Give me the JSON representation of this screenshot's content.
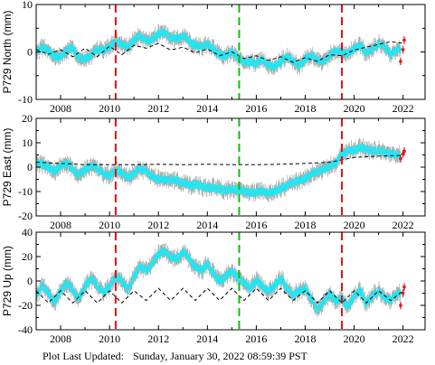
{
  "footer": {
    "label": "Plot Last Updated:",
    "timestamp": "Sunday, January 30, 2022 08:59:39 PST"
  },
  "colors": {
    "observed": "#22e6f2",
    "error_bars": "#aaaaaa",
    "model": "#000000",
    "recent": "#ee1111",
    "event_red": "#dd1111",
    "event_green": "#11bb11"
  },
  "chart_data": [
    {
      "type": "scatter",
      "ylabel": "P729 North (mm)",
      "xlim": [
        2007.0,
        2022.9
      ],
      "ylim": [
        -10,
        10
      ],
      "yticks": [
        -10,
        0,
        10
      ],
      "xticks": [
        2008,
        2010,
        2012,
        2014,
        2016,
        2018,
        2020,
        2022
      ],
      "grid": false,
      "event_lines": [
        {
          "x": 2010.25,
          "color": "red",
          "style": "dashed"
        },
        {
          "x": 2015.3,
          "color": "green",
          "style": "dashed"
        },
        {
          "x": 2019.5,
          "color": "red",
          "style": "dashed"
        }
      ],
      "series": [
        {
          "role": "observed",
          "x": [
            2007.0,
            2007.25,
            2007.5,
            2007.75,
            2008.0,
            2008.25,
            2008.5,
            2008.75,
            2009.0,
            2009.25,
            2009.5,
            2009.75,
            2010.0,
            2010.25,
            2010.5,
            2010.75,
            2011.0,
            2011.25,
            2011.5,
            2011.75,
            2012.0,
            2012.25,
            2012.5,
            2012.75,
            2013.0,
            2013.25,
            2013.5,
            2013.75,
            2014.0,
            2014.25,
            2014.5,
            2014.75,
            2015.0,
            2015.25,
            2015.5,
            2015.75,
            2016.0,
            2016.25,
            2016.5,
            2016.75,
            2017.0,
            2017.25,
            2017.5,
            2017.75,
            2018.0,
            2018.25,
            2018.5,
            2018.75,
            2019.0,
            2019.25,
            2019.5,
            2019.75,
            2020.0,
            2020.25,
            2020.5,
            2020.75,
            2021.0,
            2021.25,
            2021.5,
            2021.75
          ],
          "y": [
            0.0,
            1.0,
            0.2,
            -1.0,
            -1.0,
            0.3,
            0.8,
            -1.2,
            -1.5,
            -0.8,
            0.6,
            0.2,
            1.2,
            2.2,
            1.6,
            0.8,
            2.6,
            3.4,
            2.2,
            2.6,
            3.8,
            4.0,
            3.0,
            2.8,
            3.4,
            2.2,
            1.4,
            1.0,
            1.6,
            0.6,
            -0.6,
            -0.8,
            0.0,
            -1.2,
            -2.4,
            -2.0,
            -2.6,
            -1.4,
            -2.8,
            -3.2,
            -2.0,
            -1.0,
            -2.0,
            -3.0,
            -1.4,
            -0.6,
            -1.8,
            -2.2,
            -0.6,
            0.4,
            0.0,
            -0.6,
            0.8,
            1.4,
            -0.2,
            0.6,
            1.8,
            1.0,
            -0.6,
            0.6
          ]
        },
        {
          "role": "recent",
          "x": [
            2021.9,
            2022.0,
            2022.05
          ],
          "y": [
            -2.0,
            0.5,
            2.5
          ]
        },
        {
          "role": "model",
          "x": [
            2007.0,
            2007.5,
            2008.0,
            2008.5,
            2009.0,
            2009.5,
            2010.0,
            2010.5,
            2011.0,
            2011.5,
            2012.0,
            2012.5,
            2013.0,
            2013.5,
            2014.0,
            2014.5,
            2015.0,
            2015.5,
            2016.0,
            2016.5,
            2017.0,
            2017.5,
            2018.0,
            2018.5,
            2019.0,
            2019.5,
            2020.0,
            2020.5,
            2021.0,
            2021.5,
            2022.0
          ],
          "y": [
            0.5,
            -0.5,
            0.5,
            -1.0,
            0.8,
            -1.0,
            1.2,
            -0.6,
            1.4,
            0.8,
            1.8,
            0.4,
            1.0,
            -0.2,
            0.6,
            -0.8,
            0.0,
            -1.4,
            -0.8,
            -1.8,
            -1.0,
            -2.2,
            -1.2,
            -2.0,
            -0.6,
            -0.8,
            0.4,
            1.0,
            1.6,
            2.2,
            1.8
          ]
        }
      ]
    },
    {
      "type": "scatter",
      "ylabel": "P729 East (mm)",
      "xlim": [
        2007.0,
        2022.9
      ],
      "ylim": [
        -20,
        20
      ],
      "yticks": [
        -20,
        -10,
        0,
        10,
        20
      ],
      "xticks": [
        2008,
        2010,
        2012,
        2014,
        2016,
        2018,
        2020,
        2022
      ],
      "grid": false,
      "event_lines": [
        {
          "x": 2010.25,
          "color": "red",
          "style": "dashed"
        },
        {
          "x": 2015.3,
          "color": "green",
          "style": "dashed"
        },
        {
          "x": 2019.5,
          "color": "red",
          "style": "dashed"
        }
      ],
      "series": [
        {
          "role": "observed",
          "x": [
            2007.0,
            2007.25,
            2007.5,
            2007.75,
            2008.0,
            2008.25,
            2008.5,
            2008.75,
            2009.0,
            2009.25,
            2009.5,
            2009.75,
            2010.0,
            2010.25,
            2010.5,
            2010.75,
            2011.0,
            2011.25,
            2011.5,
            2011.75,
            2012.0,
            2012.25,
            2012.5,
            2012.75,
            2013.0,
            2013.25,
            2013.5,
            2013.75,
            2014.0,
            2014.25,
            2014.5,
            2014.75,
            2015.0,
            2015.25,
            2015.5,
            2015.75,
            2016.0,
            2016.25,
            2016.5,
            2016.75,
            2017.0,
            2017.25,
            2017.5,
            2017.75,
            2018.0,
            2018.25,
            2018.5,
            2018.75,
            2019.0,
            2019.25,
            2019.5,
            2019.75,
            2020.0,
            2020.25,
            2020.5,
            2020.75,
            2021.0,
            2021.25,
            2021.5,
            2021.75
          ],
          "y": [
            2.0,
            1.0,
            0.0,
            -2.0,
            0.5,
            1.5,
            -1.0,
            -3.0,
            -1.0,
            0.5,
            -0.5,
            -3.0,
            -3.5,
            -1.0,
            -2.5,
            -4.5,
            -2.5,
            -0.5,
            -2.0,
            -4.0,
            -5.0,
            -5.5,
            -5.0,
            -5.5,
            -6.5,
            -7.5,
            -7.0,
            -8.0,
            -8.5,
            -8.5,
            -9.0,
            -9.5,
            -9.0,
            -9.5,
            -10.0,
            -10.5,
            -10.5,
            -9.5,
            -10.5,
            -10.0,
            -9.0,
            -7.5,
            -6.5,
            -5.5,
            -4.5,
            -2.5,
            -2.0,
            -1.0,
            0.5,
            2.0,
            5.5,
            6.5,
            7.0,
            8.0,
            7.5,
            6.5,
            7.0,
            6.0,
            5.5,
            5.0
          ]
        },
        {
          "role": "recent",
          "x": [
            2021.9,
            2022.0,
            2022.05
          ],
          "y": [
            3.5,
            5.5,
            6.5
          ]
        },
        {
          "role": "model",
          "x": [
            2007.0,
            2008.0,
            2009.0,
            2010.0,
            2011.0,
            2012.0,
            2013.0,
            2014.0,
            2015.0,
            2016.0,
            2017.0,
            2018.0,
            2019.0,
            2019.5,
            2020.0,
            2021.0,
            2022.0
          ],
          "y": [
            2.0,
            1.5,
            1.0,
            1.0,
            1.0,
            1.2,
            1.0,
            1.2,
            1.0,
            1.0,
            1.2,
            1.5,
            2.0,
            3.0,
            4.0,
            4.5,
            4.8
          ]
        }
      ]
    },
    {
      "type": "scatter",
      "ylabel": "P729 Up (mm)",
      "xlim": [
        2007.0,
        2022.9
      ],
      "ylim": [
        -40,
        40
      ],
      "yticks": [
        -40,
        -20,
        0,
        20,
        40
      ],
      "xticks": [
        2008,
        2010,
        2012,
        2014,
        2016,
        2018,
        2020,
        2022
      ],
      "grid": false,
      "event_lines": [
        {
          "x": 2010.25,
          "color": "red",
          "style": "dashed"
        },
        {
          "x": 2015.3,
          "color": "green",
          "style": "dashed"
        },
        {
          "x": 2019.5,
          "color": "red",
          "style": "dashed"
        }
      ],
      "series": [
        {
          "role": "observed",
          "x": [
            2007.0,
            2007.25,
            2007.5,
            2007.75,
            2008.0,
            2008.25,
            2008.5,
            2008.75,
            2009.0,
            2009.25,
            2009.5,
            2009.75,
            2010.0,
            2010.25,
            2010.5,
            2010.75,
            2011.0,
            2011.25,
            2011.5,
            2011.75,
            2012.0,
            2012.25,
            2012.5,
            2012.75,
            2013.0,
            2013.25,
            2013.5,
            2013.75,
            2014.0,
            2014.25,
            2014.5,
            2014.75,
            2015.0,
            2015.25,
            2015.5,
            2015.75,
            2016.0,
            2016.25,
            2016.5,
            2016.75,
            2017.0,
            2017.25,
            2017.5,
            2017.75,
            2018.0,
            2018.25,
            2018.5,
            2018.75,
            2019.0,
            2019.25,
            2019.5,
            2019.75,
            2020.0,
            2020.25,
            2020.5,
            2020.75,
            2021.0,
            2021.25,
            2021.5,
            2021.75
          ],
          "y": [
            -12.0,
            -4.0,
            -10.0,
            -18.0,
            -8.0,
            -2.0,
            -8.0,
            -14.0,
            -4.0,
            2.0,
            -4.0,
            -10.0,
            -4.0,
            4.0,
            0.0,
            -8.0,
            4.0,
            12.0,
            8.0,
            14.0,
            22.0,
            24.0,
            20.0,
            18.0,
            24.0,
            18.0,
            12.0,
            8.0,
            14.0,
            6.0,
            0.0,
            4.0,
            8.0,
            2.0,
            -2.0,
            -6.0,
            0.0,
            -4.0,
            -8.0,
            -4.0,
            2.0,
            -6.0,
            -12.0,
            -8.0,
            -6.0,
            -14.0,
            -24.0,
            -18.0,
            -10.0,
            -16.0,
            -14.0,
            -22.0,
            -12.0,
            -8.0,
            -18.0,
            -12.0,
            -8.0,
            -14.0,
            -16.0,
            -10.0
          ]
        },
        {
          "role": "recent",
          "x": [
            2021.9,
            2022.0,
            2022.05
          ],
          "y": [
            -20.0,
            -10.0,
            -5.0
          ]
        },
        {
          "role": "model",
          "x": [
            2007.0,
            2007.5,
            2008.0,
            2008.5,
            2009.0,
            2009.5,
            2010.0,
            2010.5,
            2011.0,
            2011.5,
            2012.0,
            2012.5,
            2013.0,
            2013.5,
            2014.0,
            2014.5,
            2015.0,
            2015.5,
            2016.0,
            2016.5,
            2017.0,
            2017.5,
            2018.0,
            2018.5,
            2019.0,
            2019.5,
            2020.0,
            2020.5,
            2021.0,
            2021.5,
            2022.0
          ],
          "y": [
            -8.0,
            -18.0,
            -8.0,
            -18.0,
            -8.0,
            -18.0,
            -8.0,
            -18.0,
            -8.0,
            -16.0,
            -6.0,
            -16.0,
            -6.0,
            -16.0,
            -6.0,
            -16.0,
            -6.0,
            -16.0,
            -6.0,
            -16.0,
            -6.0,
            -16.0,
            -8.0,
            -18.0,
            -8.0,
            -18.0,
            -8.0,
            -18.0,
            -8.0,
            -16.0,
            -8.0
          ]
        }
      ]
    }
  ]
}
